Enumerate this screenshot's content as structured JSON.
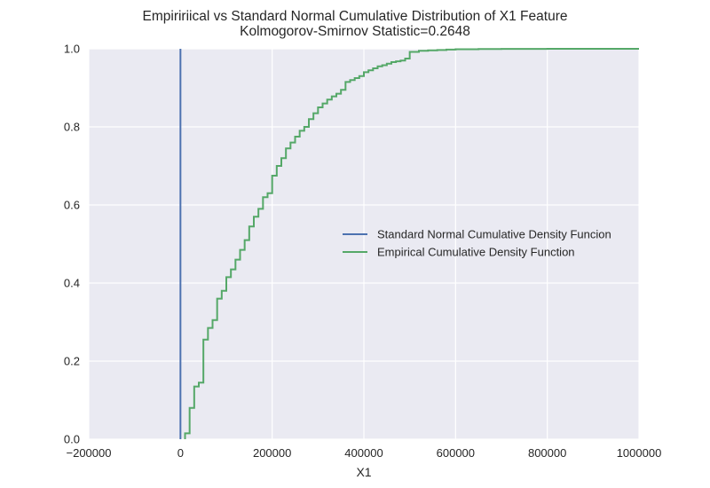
{
  "chart_data": {
    "type": "line",
    "title": "Empiririical vs Standard Normal Cumulative Distribution of X1 Feature",
    "subtitle": "Kolmogorov-Smirnov Statistic=0.2648",
    "xlabel": "X1",
    "ylabel": "",
    "xlim": [
      -200000,
      1000000
    ],
    "ylim": [
      0.0,
      1.0
    ],
    "xticks": [
      -200000,
      0,
      200000,
      400000,
      600000,
      800000,
      1000000
    ],
    "xtick_labels": [
      "−200000",
      "0",
      "200000",
      "400000",
      "600000",
      "800000",
      "1000000"
    ],
    "yticks": [
      0.0,
      0.2,
      0.4,
      0.6,
      0.8,
      1.0
    ],
    "ytick_labels": [
      "0.0",
      "0.2",
      "0.4",
      "0.6",
      "0.8",
      "1.0"
    ],
    "grid": true,
    "background_color": "#EAEAF2",
    "legend_position": "center-right",
    "series": [
      {
        "name": "Standard Normal Cumulative Density Funcion",
        "color": "#4C72B0",
        "step": false,
        "x": [
          0,
          0
        ],
        "y": [
          0.0,
          1.0
        ]
      },
      {
        "name": "Empirical Cumulative Density Function",
        "color": "#55A868",
        "step": true,
        "x": [
          10000,
          20000,
          30000,
          40000,
          50000,
          60000,
          70000,
          80000,
          90000,
          100000,
          110000,
          120000,
          130000,
          140000,
          150000,
          160000,
          170000,
          180000,
          190000,
          200000,
          210000,
          220000,
          230000,
          240000,
          250000,
          260000,
          270000,
          280000,
          290000,
          300000,
          310000,
          320000,
          330000,
          340000,
          350000,
          360000,
          370000,
          380000,
          390000,
          400000,
          410000,
          420000,
          430000,
          440000,
          450000,
          460000,
          470000,
          480000,
          490000,
          500000,
          520000,
          540000,
          560000,
          580000,
          600000,
          650000,
          700000,
          800000,
          1000000
        ],
        "y": [
          0.015,
          0.08,
          0.135,
          0.145,
          0.255,
          0.285,
          0.305,
          0.36,
          0.38,
          0.415,
          0.435,
          0.46,
          0.485,
          0.51,
          0.545,
          0.57,
          0.59,
          0.62,
          0.63,
          0.675,
          0.7,
          0.72,
          0.745,
          0.76,
          0.775,
          0.79,
          0.8,
          0.82,
          0.835,
          0.85,
          0.86,
          0.87,
          0.878,
          0.885,
          0.895,
          0.915,
          0.92,
          0.925,
          0.93,
          0.94,
          0.945,
          0.95,
          0.955,
          0.958,
          0.962,
          0.966,
          0.968,
          0.97,
          0.975,
          0.992,
          0.995,
          0.996,
          0.997,
          0.998,
          0.999,
          0.9995,
          0.9998,
          1.0,
          1.0
        ]
      }
    ]
  }
}
